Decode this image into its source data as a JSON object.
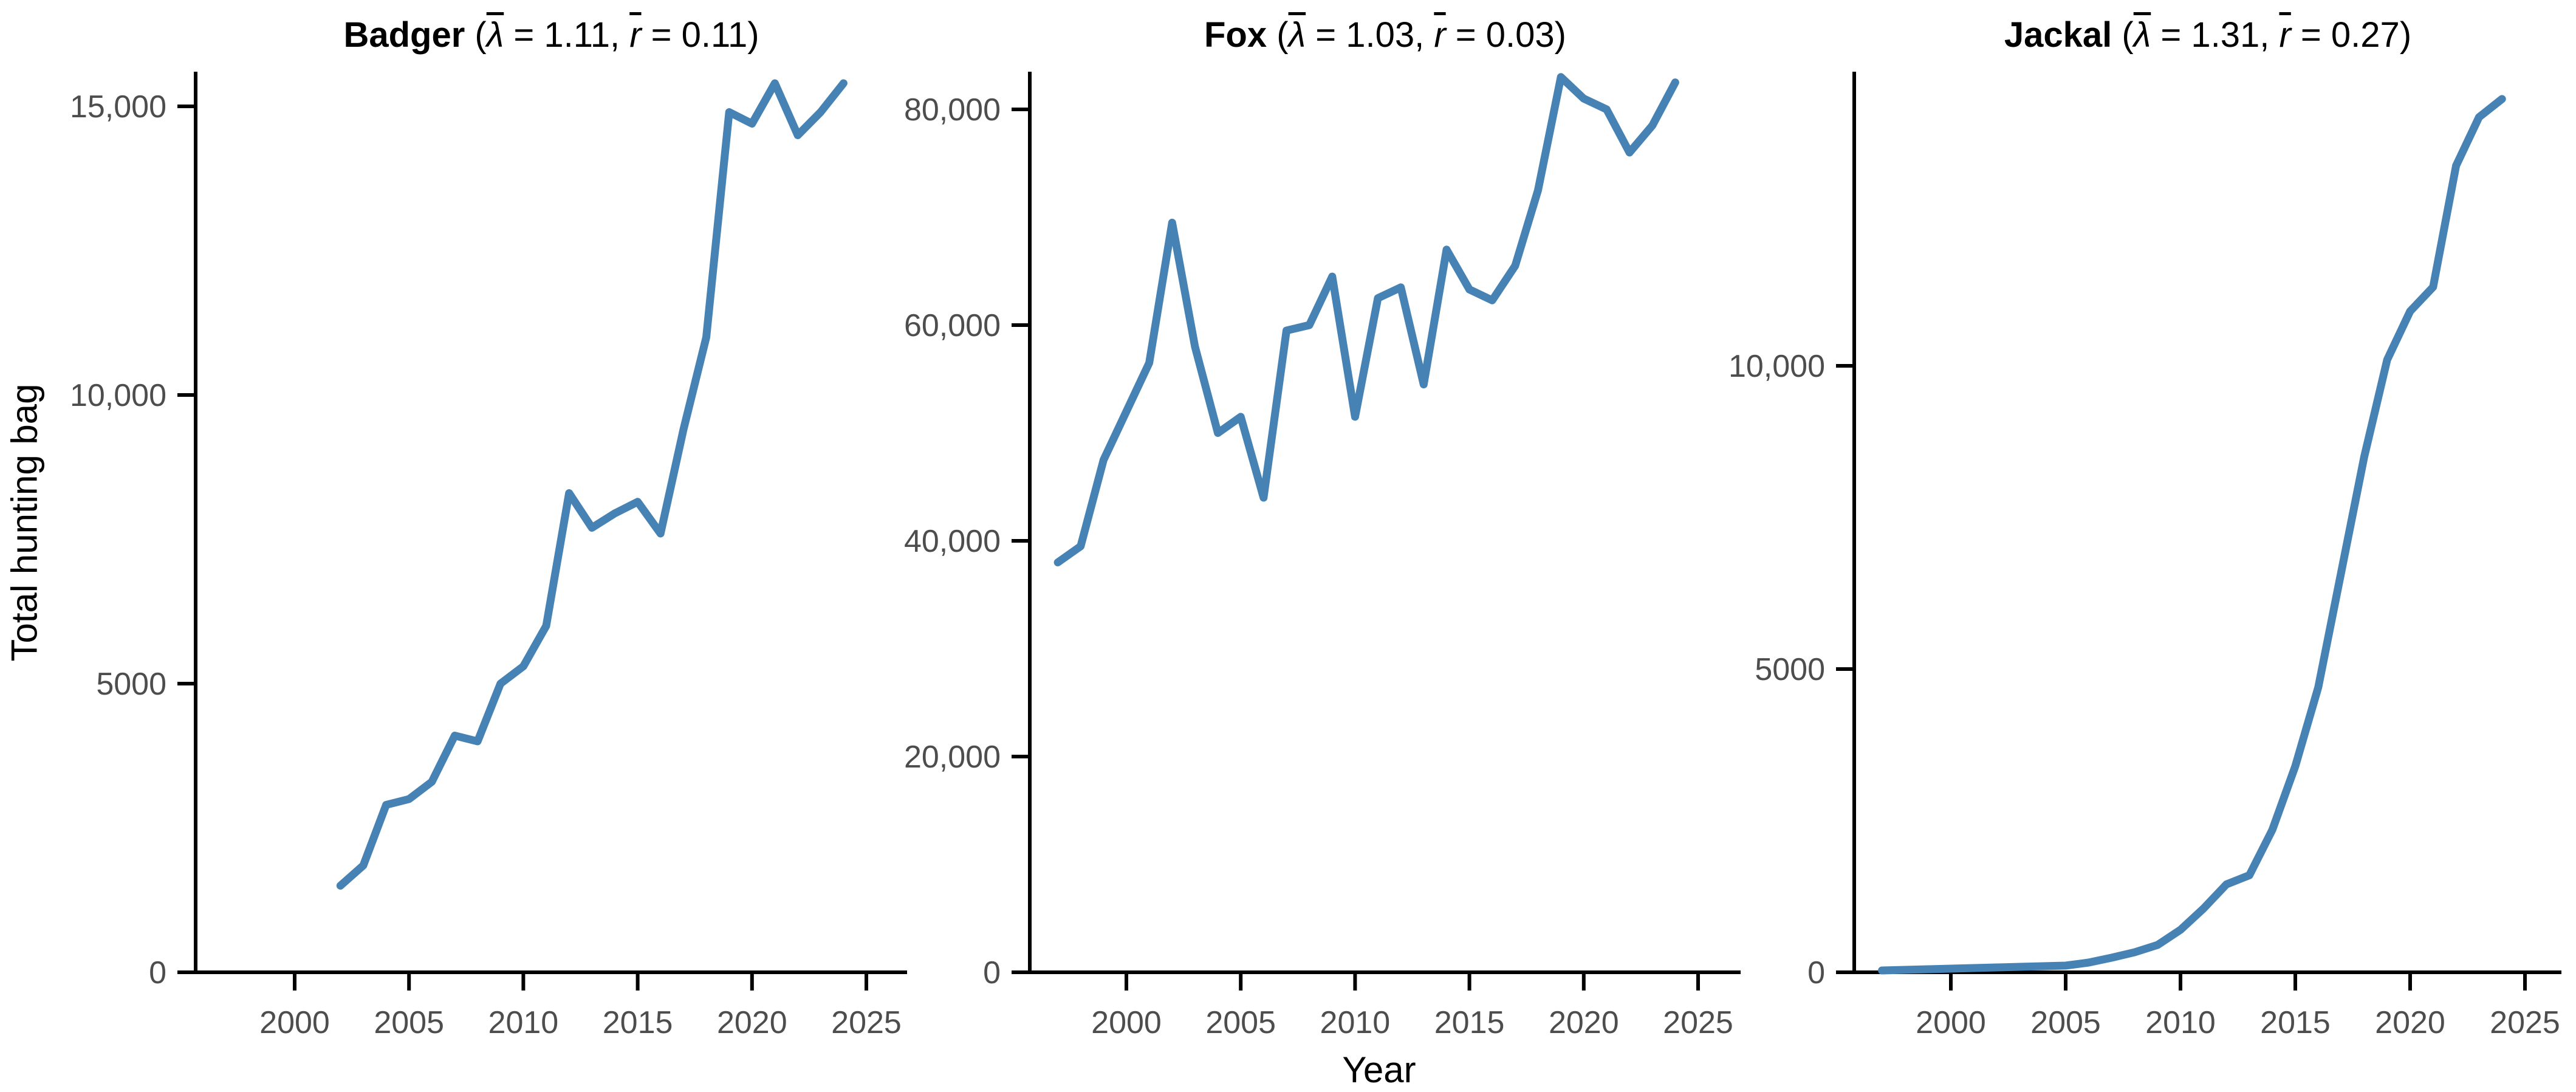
{
  "figure": {
    "xlabel": "Year",
    "ylabel": "Total hunting bag",
    "background": "#FFFFFF",
    "line_color": "#4682B4",
    "axis_color": "#000000",
    "tick_label_color": "#4D4D4D",
    "title_color": "#000000"
  },
  "chart_data": [
    {
      "type": "line",
      "title": {
        "species": "Badger",
        "lambda_symbol": "λ",
        "lambda_mean": "1.11",
        "r_symbol": "r",
        "r_mean": "0.11",
        "text": "Badger (λ̄ = 1.11, r̄ = 0.11)"
      },
      "x": [
        2002,
        2003,
        2004,
        2005,
        2006,
        2007,
        2008,
        2009,
        2010,
        2011,
        2012,
        2013,
        2014,
        2015,
        2016,
        2017,
        2018,
        2019,
        2020,
        2021,
        2022,
        2023,
        2024
      ],
      "values": [
        1500,
        1850,
        2900,
        3000,
        3300,
        4100,
        4000,
        5000,
        5300,
        6000,
        8300,
        7700,
        7950,
        8150,
        7600,
        9400,
        11000,
        14900,
        14700,
        15400,
        14500,
        14900,
        15400
      ],
      "xlabel": "Year",
      "ylabel": "Total hunting bag",
      "xlim": [
        1995.7,
        2026.8
      ],
      "ylim": [
        0,
        15750
      ],
      "xticks": [
        2000,
        2005,
        2010,
        2015,
        2020,
        2025
      ],
      "yticks": [
        {
          "value": 0,
          "label": "0"
        },
        {
          "value": 5000,
          "label": "5000"
        },
        {
          "value": 10000,
          "label": "10,000"
        },
        {
          "value": 15000,
          "label": "15,000"
        }
      ],
      "grid": false,
      "legend": false
    },
    {
      "type": "line",
      "title": {
        "species": "Fox",
        "lambda_symbol": "λ",
        "lambda_mean": "1.03",
        "r_symbol": "r",
        "r_mean": "0.03",
        "text": "Fox (λ̄ = 1.03, r̄ = 0.03)"
      },
      "x": [
        1997,
        1998,
        1999,
        2000,
        2001,
        2002,
        2003,
        2004,
        2005,
        2006,
        2007,
        2008,
        2009,
        2010,
        2011,
        2012,
        2013,
        2014,
        2015,
        2016,
        2017,
        2018,
        2019,
        2020,
        2021,
        2022,
        2023,
        2024
      ],
      "values": [
        38000,
        39500,
        47500,
        52000,
        56500,
        69500,
        58000,
        50000,
        51500,
        44000,
        59500,
        60000,
        64500,
        51500,
        62500,
        63500,
        54500,
        67000,
        63300,
        62300,
        65500,
        72500,
        83000,
        81000,
        80000,
        76000,
        78500,
        82500
      ],
      "xlabel": "Year",
      "ylabel": "Total hunting bag",
      "xlim": [
        1995.7,
        2026.8
      ],
      "ylim": [
        0,
        84200
      ],
      "xticks": [
        2000,
        2005,
        2010,
        2015,
        2020,
        2025
      ],
      "yticks": [
        {
          "value": 0,
          "label": "0"
        },
        {
          "value": 20000,
          "label": "20,000"
        },
        {
          "value": 40000,
          "label": "40,000"
        },
        {
          "value": 60000,
          "label": "60,000"
        },
        {
          "value": 80000,
          "label": "80,000"
        }
      ],
      "grid": false,
      "legend": false
    },
    {
      "type": "line",
      "title": {
        "species": "Jackal",
        "lambda_symbol": "λ",
        "lambda_mean": "1.31",
        "r_symbol": "r",
        "r_mean": "0.27",
        "text": "Jackal (λ̄ = 1.31, r̄ = 0.27)"
      },
      "x": [
        1997,
        1998,
        1999,
        2000,
        2001,
        2002,
        2003,
        2004,
        2005,
        2006,
        2007,
        2008,
        2009,
        2010,
        2011,
        2012,
        2013,
        2014,
        2015,
        2016,
        2017,
        2018,
        2019,
        2020,
        2021,
        2022,
        2023,
        2024
      ],
      "values": [
        30,
        40,
        50,
        60,
        70,
        80,
        90,
        100,
        110,
        160,
        240,
        330,
        450,
        700,
        1050,
        1450,
        1600,
        2350,
        3400,
        4700,
        6600,
        8500,
        10100,
        10900,
        11300,
        13300,
        14100,
        14400
      ],
      "xlabel": "Year",
      "ylabel": "Total hunting bag",
      "xlim": [
        1995.8,
        2026.6
      ],
      "ylim": [
        0,
        15000
      ],
      "xticks": [
        2000,
        2005,
        2010,
        2015,
        2020,
        2025
      ],
      "yticks": [
        {
          "value": 0,
          "label": "0"
        },
        {
          "value": 5000,
          "label": "5000"
        },
        {
          "value": 10000,
          "label": "10,000"
        }
      ],
      "grid": false,
      "legend": false
    }
  ]
}
